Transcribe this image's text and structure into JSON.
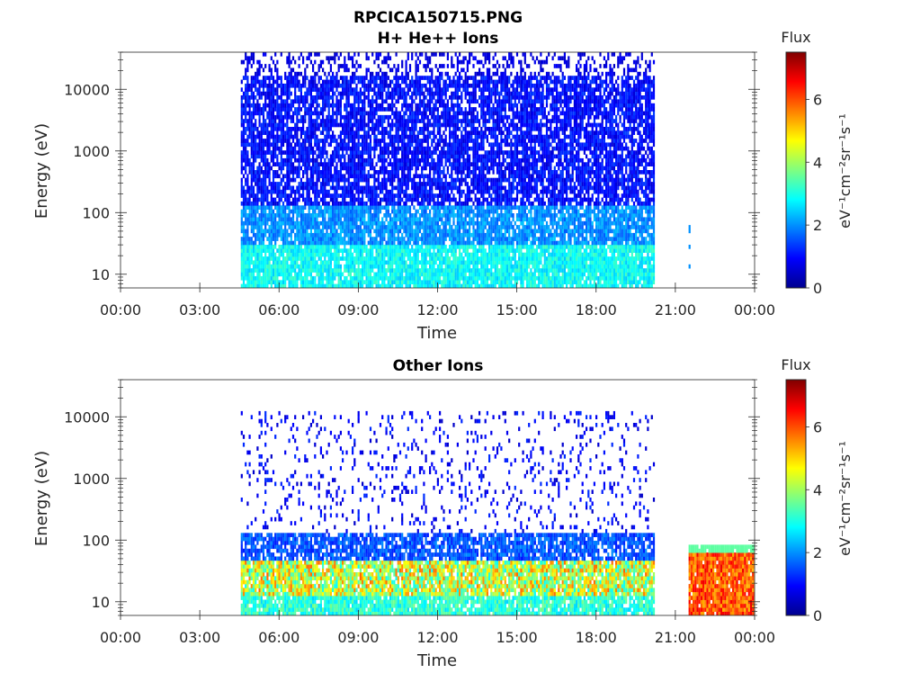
{
  "figure_title": "RPCICA150715.PNG",
  "chart_data": [
    {
      "type": "heatmap",
      "title": "H+ He++ Ions",
      "xlabel": "Time",
      "ylabel": "Energy (eV)",
      "x_ticks": [
        "00:00",
        "03:00",
        "06:00",
        "09:00",
        "12:00",
        "15:00",
        "18:00",
        "21:00",
        "00:00"
      ],
      "xlim_hours": [
        0,
        24
      ],
      "y_scale": "log",
      "y_ticks": [
        "10",
        "100",
        "1000",
        "10000"
      ],
      "ylim": [
        6,
        40000
      ],
      "colorbar": {
        "title": "Flux",
        "unit": "eV⁻¹cm⁻²sr⁻¹s⁻¹",
        "ticks": [
          "0",
          "2",
          "4",
          "6"
        ],
        "range": [
          0,
          7.5
        ],
        "colormap": "jet"
      },
      "data_regions": [
        {
          "t_start": 4.55,
          "t_end": 20.15,
          "e_min": 6,
          "e_max": 35000,
          "note_levels": "low-energy ~2-3, mid ~1-2, high ~0.5-1"
        },
        {
          "t_start": 21.5,
          "t_end": 21.55,
          "e_min": 6,
          "e_max": 80,
          "note_levels": "sparse ~2"
        }
      ]
    },
    {
      "type": "heatmap",
      "title": "Other Ions",
      "xlabel": "Time",
      "ylabel": "Energy (eV)",
      "x_ticks": [
        "00:00",
        "03:00",
        "06:00",
        "09:00",
        "12:00",
        "15:00",
        "18:00",
        "21:00",
        "00:00"
      ],
      "xlim_hours": [
        0,
        24
      ],
      "y_scale": "log",
      "y_ticks": [
        "10",
        "100",
        "1000",
        "10000"
      ],
      "ylim": [
        6,
        40000
      ],
      "colorbar": {
        "title": "Flux",
        "unit": "eV⁻¹cm⁻²sr⁻¹s⁻¹",
        "ticks": [
          "0",
          "2",
          "4",
          "6"
        ],
        "range": [
          0,
          7.5
        ],
        "colormap": "jet"
      },
      "data_regions": [
        {
          "t_start": 4.55,
          "t_end": 20.15,
          "e_min": 6,
          "e_max": 11000,
          "note_levels": "10-40 eV ~3-6, 40-130 eV ~1-2, above sparse ~0.5"
        },
        {
          "t_start": 21.5,
          "t_end": 24.0,
          "e_min": 6,
          "e_max": 80,
          "note_levels": "~5-7"
        }
      ]
    }
  ]
}
